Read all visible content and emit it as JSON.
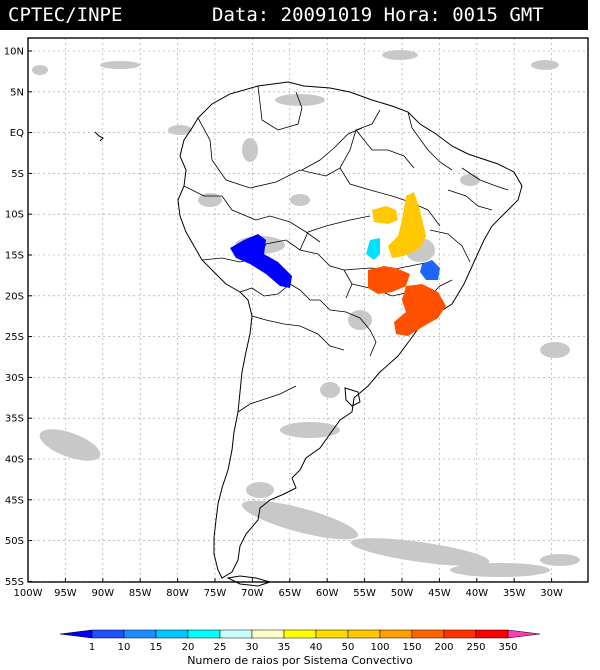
{
  "header": {
    "source": "CPTEC/INPE",
    "datetime": "Data: 20091019 Hora: 0015 GMT"
  },
  "map": {
    "lat_labels": [
      "10N",
      "5N",
      "EQ",
      "5S",
      "10S",
      "15S",
      "20S",
      "25S",
      "30S",
      "35S",
      "40S",
      "45S",
      "50S",
      "55S"
    ],
    "lon_labels": [
      "100W",
      "95W",
      "90W",
      "85W",
      "80W",
      "75W",
      "70W",
      "65W",
      "60W",
      "55W",
      "50W",
      "45W",
      "40W",
      "35W",
      "30W"
    ],
    "colors": {
      "land_outline": "#000000",
      "clouds": "#c8c8c8",
      "graticule": "#9a9a9a"
    },
    "systems": [
      {
        "region": "Bolivia / Peru border",
        "class": "1-10",
        "color": "#0000ff"
      },
      {
        "region": "Mato Grosso (south)",
        "class": "20-25",
        "color": "#00e0ff"
      },
      {
        "region": "Goias / Tocantins",
        "class": "50-100",
        "color": "#ffc800"
      },
      {
        "region": "Minas Gerais (west)",
        "class": "10-15",
        "color": "#1e64ff"
      },
      {
        "region": "Mato Grosso do Sul / Parana",
        "class": "150-200",
        "color": "#ff5000"
      },
      {
        "region": "Sao Paulo / Minas Gerais",
        "class": "150-200",
        "color": "#ff5000"
      }
    ]
  },
  "colorbar": {
    "labels": [
      "1",
      "10",
      "15",
      "20",
      "25",
      "30",
      "35",
      "40",
      "50",
      "100",
      "150",
      "200",
      "250",
      "350"
    ],
    "colors": [
      "#0000ff",
      "#1e50ff",
      "#1e8cff",
      "#00c8ff",
      "#00ffff",
      "#c8ffff",
      "#ffffc8",
      "#ffff00",
      "#ffdc00",
      "#ffc800",
      "#ffa000",
      "#ff6400",
      "#ff3200",
      "#ff0000",
      "#ff3cb4"
    ],
    "caption": "Numero de raios por Sistema Convectivo"
  }
}
